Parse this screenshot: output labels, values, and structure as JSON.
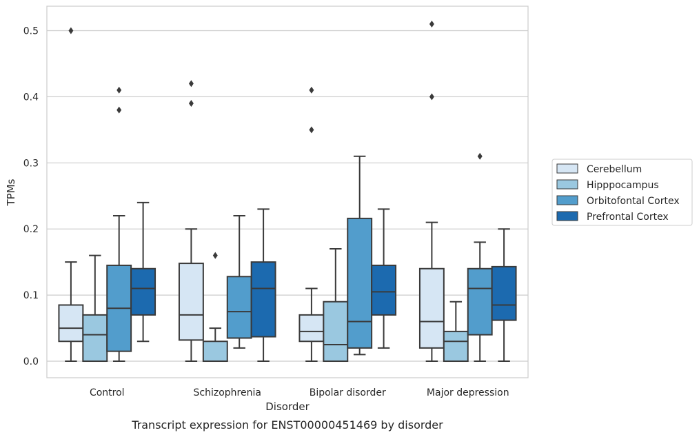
{
  "chart_data": {
    "type": "box",
    "caption": "Transcript expression for ENST00000451469 by disorder",
    "xlabel": "Disorder",
    "ylabel": "TPMs",
    "ylim": [
      -0.025,
      0.537
    ],
    "yticks": [
      "0.0",
      "0.1",
      "0.2",
      "0.3",
      "0.4",
      "0.5"
    ],
    "ytick_values": [
      0.0,
      0.1,
      0.2,
      0.3,
      0.4,
      0.5
    ],
    "grid": "horizontal",
    "legend_position": "right",
    "categories": [
      "Control",
      "Schizophrenia",
      "Bipolar disorder",
      "Major depression"
    ],
    "series": [
      {
        "name": "Cerebellum",
        "color": "#d6e6f4",
        "boxes": [
          {
            "whisker_low": 0.0,
            "q1": 0.03,
            "median": 0.05,
            "q3": 0.085,
            "whisker_high": 0.15,
            "outliers": [
              0.5
            ]
          },
          {
            "whisker_low": 0.0,
            "q1": 0.032,
            "median": 0.07,
            "q3": 0.148,
            "whisker_high": 0.2,
            "outliers": [
              0.39,
              0.42
            ]
          },
          {
            "whisker_low": 0.0,
            "q1": 0.03,
            "median": 0.045,
            "q3": 0.07,
            "whisker_high": 0.11,
            "outliers": [
              0.35,
              0.41
            ]
          },
          {
            "whisker_low": 0.0,
            "q1": 0.02,
            "median": 0.06,
            "q3": 0.14,
            "whisker_high": 0.21,
            "outliers": [
              0.4,
              0.51
            ]
          }
        ]
      },
      {
        "name": "Hipppocampus",
        "color": "#9ac8e0",
        "boxes": [
          {
            "whisker_low": 0.0,
            "q1": 0.0,
            "median": 0.04,
            "q3": 0.07,
            "whisker_high": 0.16,
            "outliers": []
          },
          {
            "whisker_low": 0.0,
            "q1": 0.0,
            "median": 0.0,
            "q3": 0.03,
            "whisker_high": 0.05,
            "outliers": [
              0.16
            ]
          },
          {
            "whisker_low": 0.0,
            "q1": 0.0,
            "median": 0.025,
            "q3": 0.09,
            "whisker_high": 0.17,
            "outliers": []
          },
          {
            "whisker_low": 0.0,
            "q1": 0.0,
            "median": 0.03,
            "q3": 0.045,
            "whisker_high": 0.09,
            "outliers": []
          }
        ]
      },
      {
        "name": "Orbitofontal Cortex",
        "color": "#529dcc",
        "boxes": [
          {
            "whisker_low": 0.0,
            "q1": 0.015,
            "median": 0.08,
            "q3": 0.145,
            "whisker_high": 0.22,
            "outliers": [
              0.38,
              0.41
            ]
          },
          {
            "whisker_low": 0.02,
            "q1": 0.035,
            "median": 0.075,
            "q3": 0.128,
            "whisker_high": 0.22,
            "outliers": []
          },
          {
            "whisker_low": 0.01,
            "q1": 0.02,
            "median": 0.06,
            "q3": 0.216,
            "whisker_high": 0.31,
            "outliers": []
          },
          {
            "whisker_low": 0.0,
            "q1": 0.04,
            "median": 0.11,
            "q3": 0.14,
            "whisker_high": 0.18,
            "outliers": [
              0.31
            ]
          }
        ]
      },
      {
        "name": "Prefrontal Cortex",
        "color": "#1c6aaf",
        "boxes": [
          {
            "whisker_low": 0.03,
            "q1": 0.07,
            "median": 0.11,
            "q3": 0.14,
            "whisker_high": 0.24,
            "outliers": []
          },
          {
            "whisker_low": 0.0,
            "q1": 0.037,
            "median": 0.11,
            "q3": 0.15,
            "whisker_high": 0.23,
            "outliers": []
          },
          {
            "whisker_low": 0.02,
            "q1": 0.07,
            "median": 0.105,
            "q3": 0.145,
            "whisker_high": 0.23,
            "outliers": []
          },
          {
            "whisker_low": 0.0,
            "q1": 0.062,
            "median": 0.085,
            "q3": 0.143,
            "whisker_high": 0.2,
            "outliers": []
          }
        ]
      }
    ]
  }
}
